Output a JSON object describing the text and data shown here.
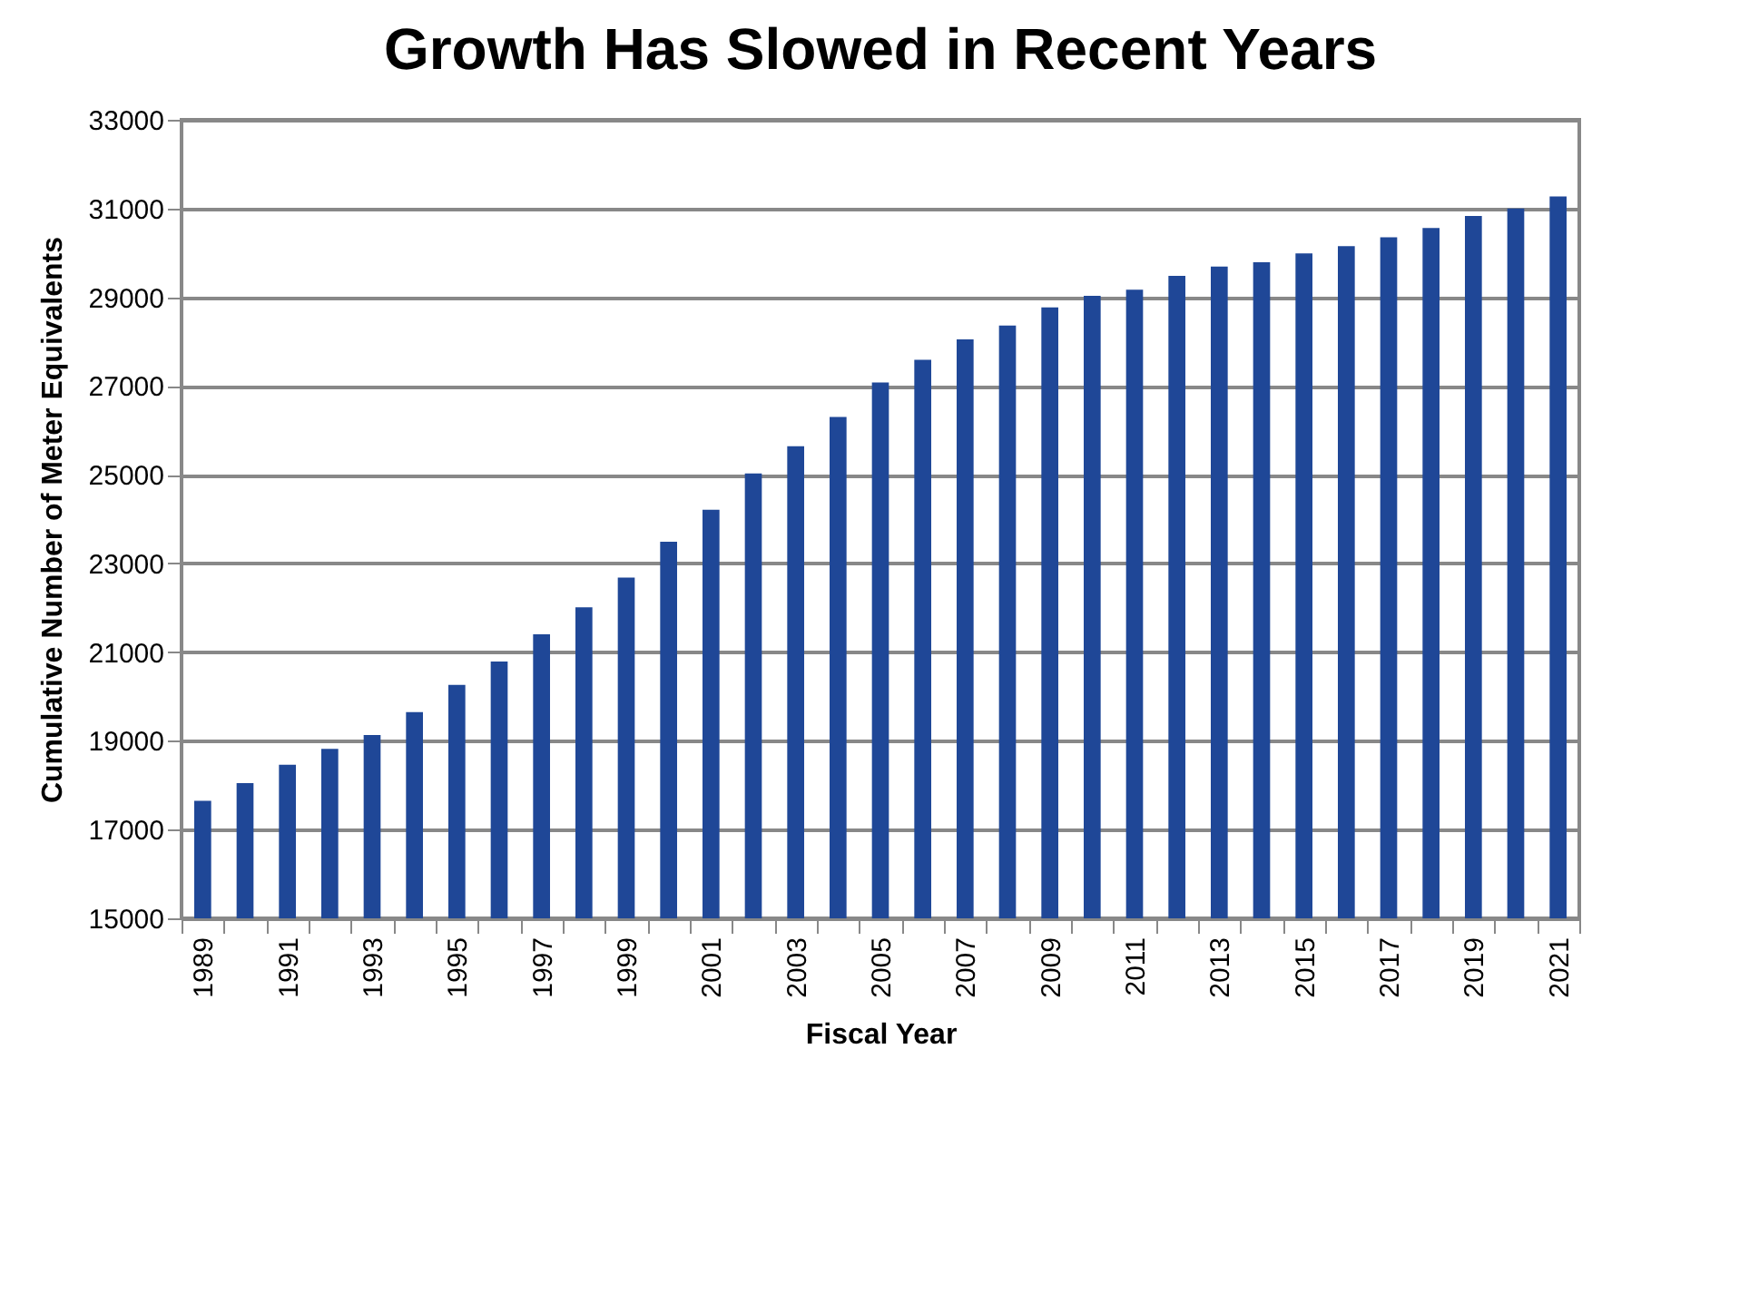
{
  "chart_data": {
    "type": "bar",
    "title": "Growth Has Slowed in Recent Years",
    "xlabel": "Fiscal Year",
    "ylabel": "Cumulative Number of Meter Equivalents",
    "categories": [
      "1989",
      null,
      "1991",
      null,
      "1993",
      null,
      "1995",
      null,
      "1997",
      null,
      "1999",
      null,
      "2001",
      null,
      "2003",
      null,
      "2005",
      null,
      "2007",
      null,
      "2009",
      null,
      "2011",
      null,
      "2013",
      null,
      "2015",
      null,
      "2017",
      null,
      "2019",
      null,
      "2021"
    ],
    "values": [
      17650,
      18050,
      18460,
      18820,
      19130,
      19650,
      20260,
      20790,
      21400,
      22010,
      22680,
      23490,
      24210,
      25030,
      25640,
      26300,
      27080,
      27590,
      28050,
      28360,
      28770,
      29030,
      29170,
      29480,
      29690,
      29790,
      29990,
      30150,
      30350,
      30560,
      30830,
      31000,
      31270
    ],
    "color": "#1f4797",
    "ylim": [
      15000,
      33000
    ],
    "yticks": [
      15000,
      17000,
      19000,
      21000,
      23000,
      25000,
      27000,
      29000,
      31000,
      33000
    ],
    "grid": "y"
  }
}
